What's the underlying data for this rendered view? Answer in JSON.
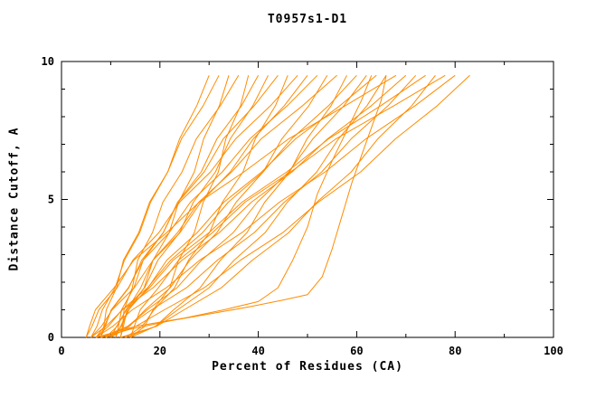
{
  "figure": {
    "background": "#ffffff"
  },
  "chart_data": {
    "type": "line",
    "title": "T0957s1-D1",
    "xlabel": "Percent of Residues (CA)",
    "ylabel": "Distance Cutoff, A",
    "xlim": [
      0,
      100
    ],
    "ylim": [
      0,
      10
    ],
    "x_ticks": [
      0,
      20,
      40,
      60,
      80,
      100
    ],
    "x_minor_ticks": [
      10,
      30,
      50,
      70,
      90
    ],
    "y_ticks": [
      0,
      5,
      10
    ],
    "y_minor_ticks": [
      1,
      2,
      3,
      4,
      6,
      7,
      8,
      9
    ],
    "grid": false,
    "legend": "none",
    "line_color": "#ff8c00",
    "axis_color": "#000000",
    "y_levels": [
      0,
      0.4,
      1.0,
      1.8,
      2.8,
      3.8,
      4.9,
      6.0,
      7.2,
      8.4,
      9.5
    ],
    "curves_x": [
      [
        6,
        7.2,
        8.3,
        10.9,
        12.8,
        15.9,
        18.1,
        21.6,
        24.0,
        27.5,
        30
      ],
      [
        8,
        8.6,
        9.1,
        11.2,
        12.6,
        15.7,
        17.9,
        21.6,
        24.4,
        28.8,
        32
      ],
      [
        10,
        12.2,
        13.7,
        16.8,
        18.6,
        21.9,
        23.8,
        27.0,
        28.9,
        32.1,
        34
      ],
      [
        12,
        12.4,
        12.7,
        14.4,
        15.5,
        18.5,
        20.6,
        24.5,
        27.4,
        32.3,
        36
      ],
      [
        14,
        16.9,
        18.6,
        22.0,
        23.8,
        27.0,
        28.8,
        31.9,
        33.4,
        36.4,
        38
      ],
      [
        7,
        8.7,
        10.2,
        13.7,
        16.3,
        20.7,
        23.6,
        28.4,
        31.6,
        36.6,
        40
      ],
      [
        9,
        11.3,
        13.1,
        16.9,
        19.6,
        24.0,
        26.8,
        31.3,
        34.3,
        38.9,
        42
      ],
      [
        11,
        11.6,
        12.2,
        14.7,
        16.6,
        20.7,
        23.7,
        29.0,
        32.9,
        39.2,
        44
      ],
      [
        13,
        16.4,
        18.8,
        23.0,
        25.8,
        30.1,
        32.7,
        36.9,
        39.4,
        43.5,
        46
      ],
      [
        5,
        6.2,
        7.6,
        11.3,
        14.5,
        19.8,
        24.0,
        30.3,
        35.4,
        42.5,
        48
      ],
      [
        6,
        8.1,
        10.3,
        14.8,
        18.6,
        24.1,
        28.3,
        34.3,
        39.0,
        45.3,
        50
      ],
      [
        8,
        8.9,
        10.1,
        13.6,
        16.6,
        21.9,
        26.2,
        32.7,
        38.3,
        45.9,
        52
      ],
      [
        10,
        13.8,
        17.0,
        22.1,
        26.1,
        31.6,
        35.5,
        41.0,
        44.8,
        50.3,
        54
      ],
      [
        12,
        12.6,
        13.3,
        16.1,
        18.6,
        23.6,
        27.9,
        34.6,
        40.6,
        49.0,
        56
      ],
      [
        14,
        19.1,
        22.8,
        28.2,
        32.3,
        37.7,
        41.3,
        46.4,
        49.9,
        54.8,
        58
      ],
      [
        7,
        9.5,
        12.3,
        17.5,
        22.2,
        28.7,
        33.9,
        41.0,
        46.8,
        54.3,
        60
      ],
      [
        9,
        13.5,
        17.4,
        23.5,
        28.5,
        34.9,
        39.8,
        46.2,
        51.1,
        57.4,
        62
      ],
      [
        11,
        12.0,
        13.6,
        17.6,
        21.4,
        27.6,
        33.0,
        40.7,
        47.6,
        56.6,
        64
      ],
      [
        13,
        19.1,
        23.6,
        30.0,
        35.1,
        41.4,
        45.9,
        51.9,
        56.3,
        62.1,
        66
      ],
      [
        5,
        5.7,
        6.9,
        10.7,
        14.7,
        21.4,
        28.0,
        37.1,
        46.2,
        57.7,
        68
      ],
      [
        6,
        9.0,
        12.4,
        18.6,
        24.5,
        32.1,
        38.6,
        46.9,
        54.1,
        63.0,
        70
      ],
      [
        8,
        13.4,
        18.3,
        25.4,
        31.7,
        39.2,
        45.3,
        52.9,
        58.9,
        66.4,
        72
      ],
      [
        10,
        11.2,
        13.2,
        17.9,
        22.7,
        30.0,
        36.7,
        45.8,
        54.3,
        64.9,
        74
      ],
      [
        12,
        19.3,
        24.9,
        32.5,
        38.8,
        46.2,
        51.9,
        58.9,
        64.3,
        71.2,
        76
      ],
      [
        14,
        14.8,
        16.0,
        19.7,
        23.8,
        30.7,
        37.3,
        46.6,
        55.8,
        67.6,
        78
      ],
      [
        7,
        10.4,
        14.4,
        21.3,
        28.1,
        36.7,
        44.3,
        53.6,
        61.9,
        71.9,
        80
      ],
      [
        9,
        15.1,
        20.9,
        29.0,
        36.4,
        45.0,
        52.2,
        60.8,
        67.9,
        76.4,
        83
      ]
    ],
    "extra_curves": [
      [
        [
          8,
          0
        ],
        [
          14,
          0.3
        ],
        [
          22,
          0.6
        ],
        [
          30,
          0.85
        ],
        [
          38,
          1.1
        ],
        [
          45,
          1.35
        ],
        [
          50,
          1.55
        ],
        [
          53,
          2.2
        ],
        [
          55,
          3.2
        ],
        [
          57,
          4.4
        ],
        [
          59,
          5.6
        ],
        [
          61,
          6.6
        ],
        [
          63,
          7.6
        ],
        [
          65,
          8.6
        ],
        [
          66,
          9.5
        ]
      ],
      [
        [
          7,
          0
        ],
        [
          15,
          0.4
        ],
        [
          25,
          0.7
        ],
        [
          33,
          1.0
        ],
        [
          40,
          1.3
        ],
        [
          44,
          1.8
        ],
        [
          47,
          2.8
        ],
        [
          50,
          4.0
        ],
        [
          52,
          5.2
        ],
        [
          55,
          6.4
        ],
        [
          58,
          7.5
        ],
        [
          61,
          8.6
        ],
        [
          63,
          9.5
        ]
      ]
    ]
  }
}
